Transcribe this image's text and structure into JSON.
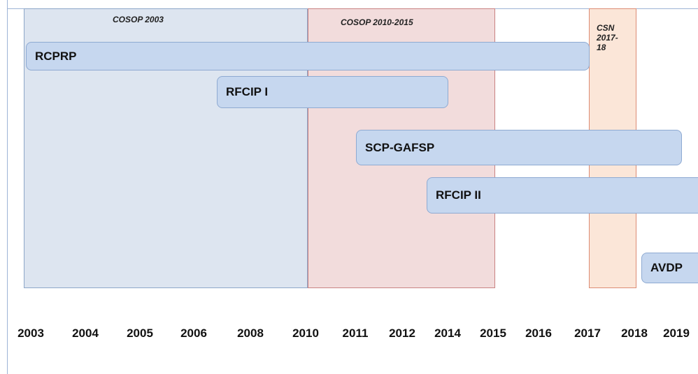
{
  "periods": [
    {
      "label": [
        "COSOP  2003"
      ]
    },
    {
      "label": [
        "COSOP 2010-2015"
      ]
    },
    {
      "label": [
        "CSN",
        "2017-",
        "18"
      ]
    }
  ],
  "projects": [
    "RCPRP",
    "RFCIP I",
    "SCP-GAFSP",
    "RFCIP II",
    "AVDP"
  ],
  "years": [
    "2003",
    "2004",
    "2005",
    "2006",
    "2008",
    "2010",
    "2011",
    "2012",
    "2014",
    "2015",
    "2016",
    "2017",
    "2018",
    "2019"
  ]
}
